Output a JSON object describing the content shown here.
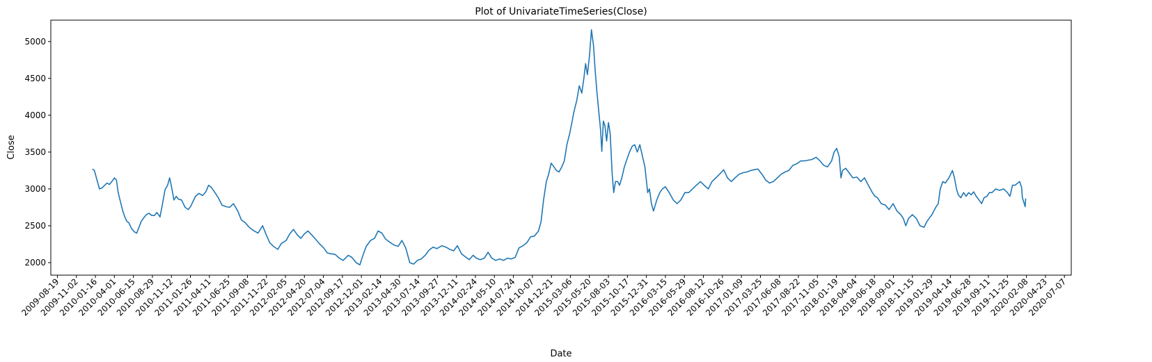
{
  "chart_data": {
    "type": "line",
    "title": "Plot of UnivariateTimeSeries(Close)",
    "xlabel": "Date",
    "ylabel": "Close",
    "ylim": [
      1830,
      5290
    ],
    "xlim": [
      "2009-07-24",
      "2020-08-03"
    ],
    "y_ticks": [
      2000,
      2500,
      3000,
      3500,
      4000,
      4500,
      5000
    ],
    "x_ticks": [
      "2009-08-19",
      "2009-11-02",
      "2010-01-16",
      "2010-04-01",
      "2010-06-15",
      "2010-08-29",
      "2010-11-12",
      "2011-01-26",
      "2011-04-11",
      "2011-06-25",
      "2011-09-08",
      "2011-11-22",
      "2012-02-05",
      "2012-04-20",
      "2012-07-04",
      "2012-09-17",
      "2012-12-01",
      "2013-02-14",
      "2013-04-30",
      "2013-07-14",
      "2013-09-27",
      "2013-12-11",
      "2014-02-24",
      "2014-05-10",
      "2014-07-24",
      "2014-10-07",
      "2014-12-21",
      "2015-03-06",
      "2015-05-20",
      "2015-08-03",
      "2015-10-17",
      "2015-12-31",
      "2016-03-15",
      "2016-05-29",
      "2016-08-12",
      "2016-10-26",
      "2017-01-09",
      "2017-03-25",
      "2017-06-08",
      "2017-08-22",
      "2017-11-05",
      "2018-01-19",
      "2018-04-04",
      "2018-06-18",
      "2018-09-01",
      "2018-11-15",
      "2019-01-29",
      "2019-04-14",
      "2019-06-28",
      "2019-09-11",
      "2019-11-25",
      "2020-02-08",
      "2020-04-23",
      "2020-07-07"
    ],
    "grid": false,
    "legend": "none",
    "line_color": "#1f77b4",
    "series": [
      {
        "x": [
          "2010-01-04",
          "2010-01-12",
          "2010-01-20",
          "2010-02-01",
          "2010-02-10",
          "2010-02-22",
          "2010-03-03",
          "2010-03-12",
          "2010-03-22",
          "2010-04-01",
          "2010-04-09",
          "2010-04-16",
          "2010-04-23",
          "2010-05-04",
          "2010-05-12",
          "2010-05-20",
          "2010-05-28",
          "2010-06-08",
          "2010-06-18",
          "2010-06-28",
          "2010-07-07",
          "2010-07-16",
          "2010-07-26",
          "2010-08-05",
          "2010-08-16",
          "2010-08-26",
          "2010-09-06",
          "2010-09-16",
          "2010-09-28",
          "2010-10-08",
          "2010-10-18",
          "2010-10-28",
          "2010-11-05",
          "2010-11-12",
          "2010-11-22",
          "2010-12-01",
          "2010-12-10",
          "2010-12-22",
          "2011-01-05",
          "2011-01-18",
          "2011-01-28",
          "2011-02-15",
          "2011-03-01",
          "2011-03-15",
          "2011-03-28",
          "2011-04-08",
          "2011-04-19",
          "2011-05-03",
          "2011-05-16",
          "2011-05-31",
          "2011-06-15",
          "2011-06-30",
          "2011-07-15",
          "2011-08-01",
          "2011-08-15",
          "2011-08-31",
          "2011-09-15",
          "2011-09-30",
          "2011-10-20",
          "2011-11-07",
          "2011-11-21",
          "2011-12-05",
          "2011-12-20",
          "2012-01-06",
          "2012-01-20",
          "2012-02-08",
          "2012-02-22",
          "2012-03-08",
          "2012-03-22",
          "2012-04-06",
          "2012-04-20",
          "2012-05-04",
          "2012-05-18",
          "2012-06-05",
          "2012-06-20",
          "2012-07-05",
          "2012-07-20",
          "2012-08-03",
          "2012-08-20",
          "2012-09-05",
          "2012-09-20",
          "2012-10-10",
          "2012-10-25",
          "2012-11-10",
          "2012-11-25",
          "2012-12-05",
          "2012-12-20",
          "2013-01-06",
          "2013-01-22",
          "2013-02-05",
          "2013-02-20",
          "2013-03-06",
          "2013-03-22",
          "2013-04-08",
          "2013-04-25",
          "2013-05-10",
          "2013-05-25",
          "2013-06-10",
          "2013-06-25",
          "2013-07-10",
          "2013-07-25",
          "2013-08-10",
          "2013-08-25",
          "2013-09-10",
          "2013-09-25",
          "2013-10-15",
          "2013-10-31",
          "2013-11-15",
          "2013-11-30",
          "2013-12-15",
          "2013-12-31",
          "2014-01-15",
          "2014-01-31",
          "2014-02-15",
          "2014-02-28",
          "2014-03-15",
          "2014-03-31",
          "2014-04-15",
          "2014-04-30",
          "2014-05-15",
          "2014-05-31",
          "2014-06-15",
          "2014-06-30",
          "2014-07-15",
          "2014-07-31",
          "2014-08-15",
          "2014-08-31",
          "2014-09-15",
          "2014-09-30",
          "2014-10-15",
          "2014-10-31",
          "2014-11-10",
          "2014-11-20",
          "2014-12-01",
          "2014-12-10",
          "2014-12-20",
          "2014-12-31",
          "2015-01-10",
          "2015-01-20",
          "2015-01-31",
          "2015-02-10",
          "2015-02-20",
          "2015-03-03",
          "2015-03-12",
          "2015-03-20",
          "2015-03-31",
          "2015-04-10",
          "2015-04-20",
          "2015-04-28",
          "2015-05-05",
          "2015-05-12",
          "2015-05-20",
          "2015-05-28",
          "2015-06-05",
          "2015-06-12",
          "2015-06-19",
          "2015-06-26",
          "2015-07-03",
          "2015-07-08",
          "2015-07-14",
          "2015-07-20",
          "2015-07-27",
          "2015-08-03",
          "2015-08-10",
          "2015-08-18",
          "2015-08-24",
          "2015-08-31",
          "2015-09-08",
          "2015-09-16",
          "2015-09-25",
          "2015-10-05",
          "2015-10-15",
          "2015-10-25",
          "2015-11-05",
          "2015-11-15",
          "2015-11-25",
          "2015-12-05",
          "2015-12-15",
          "2015-12-25",
          "2016-01-05",
          "2016-01-12",
          "2016-01-20",
          "2016-01-28",
          "2016-02-10",
          "2016-02-22",
          "2016-03-03",
          "2016-03-15",
          "2016-03-30",
          "2016-04-15",
          "2016-04-30",
          "2016-05-15",
          "2016-05-31",
          "2016-06-15",
          "2016-06-30",
          "2016-07-15",
          "2016-07-31",
          "2016-08-15",
          "2016-08-31",
          "2016-09-15",
          "2016-09-30",
          "2016-10-15",
          "2016-10-31",
          "2016-11-15",
          "2016-11-30",
          "2016-12-15",
          "2016-12-31",
          "2017-01-15",
          "2017-01-31",
          "2017-02-15",
          "2017-02-28",
          "2017-03-15",
          "2017-03-31",
          "2017-04-15",
          "2017-04-30",
          "2017-05-15",
          "2017-05-31",
          "2017-06-15",
          "2017-06-30",
          "2017-07-15",
          "2017-07-31",
          "2017-08-15",
          "2017-08-31",
          "2017-09-15",
          "2017-09-30",
          "2017-10-15",
          "2017-10-31",
          "2017-11-15",
          "2017-11-30",
          "2017-12-15",
          "2017-12-31",
          "2018-01-10",
          "2018-01-20",
          "2018-01-30",
          "2018-02-06",
          "2018-02-12",
          "2018-02-25",
          "2018-03-10",
          "2018-03-25",
          "2018-04-10",
          "2018-04-25",
          "2018-05-10",
          "2018-05-25",
          "2018-06-10",
          "2018-06-20",
          "2018-06-30",
          "2018-07-15",
          "2018-07-31",
          "2018-08-15",
          "2018-08-31",
          "2018-09-15",
          "2018-09-30",
          "2018-10-10",
          "2018-10-20",
          "2018-10-31",
          "2018-11-15",
          "2018-11-30",
          "2018-12-15",
          "2018-12-31",
          "2019-01-10",
          "2019-01-20",
          "2019-01-31",
          "2019-02-15",
          "2019-02-25",
          "2019-03-05",
          "2019-03-15",
          "2019-03-25",
          "2019-04-08",
          "2019-04-15",
          "2019-04-22",
          "2019-04-30",
          "2019-05-08",
          "2019-05-15",
          "2019-05-25",
          "2019-06-05",
          "2019-06-15",
          "2019-06-25",
          "2019-07-05",
          "2019-07-15",
          "2019-07-25",
          "2019-08-05",
          "2019-08-15",
          "2019-08-25",
          "2019-09-05",
          "2019-09-15",
          "2019-09-25",
          "2019-10-10",
          "2019-10-25",
          "2019-11-10",
          "2019-11-25",
          "2019-12-05",
          "2019-12-15",
          "2019-12-25",
          "2020-01-05",
          "2020-01-12",
          "2020-01-20",
          "2020-01-23",
          "2020-02-03",
          "2020-02-05"
        ],
        "y": [
          3270,
          3250,
          3150,
          3000,
          3010,
          3050,
          3080,
          3060,
          3100,
          3150,
          3120,
          2950,
          2850,
          2700,
          2620,
          2560,
          2540,
          2460,
          2420,
          2400,
          2480,
          2560,
          2610,
          2650,
          2670,
          2640,
          2640,
          2680,
          2620,
          2800,
          2990,
          3050,
          3150,
          3040,
          2850,
          2900,
          2860,
          2850,
          2750,
          2720,
          2770,
          2900,
          2940,
          2910,
          2960,
          3050,
          3020,
          2950,
          2880,
          2780,
          2760,
          2750,
          2800,
          2700,
          2580,
          2540,
          2480,
          2440,
          2400,
          2500,
          2380,
          2270,
          2220,
          2180,
          2260,
          2300,
          2390,
          2450,
          2380,
          2330,
          2390,
          2430,
          2380,
          2310,
          2250,
          2200,
          2130,
          2120,
          2110,
          2060,
          2030,
          2100,
          2070,
          2000,
          1970,
          2080,
          2220,
          2300,
          2330,
          2430,
          2400,
          2320,
          2280,
          2240,
          2220,
          2300,
          2200,
          2000,
          1980,
          2030,
          2050,
          2100,
          2170,
          2210,
          2190,
          2230,
          2210,
          2180,
          2160,
          2230,
          2120,
          2080,
          2040,
          2100,
          2060,
          2040,
          2060,
          2140,
          2060,
          2030,
          2050,
          2030,
          2060,
          2050,
          2070,
          2200,
          2230,
          2270,
          2350,
          2360,
          2430,
          2550,
          2850,
          3100,
          3200,
          3350,
          3300,
          3250,
          3230,
          3300,
          3380,
          3600,
          3750,
          3900,
          4050,
          4200,
          4400,
          4300,
          4500,
          4700,
          4550,
          4800,
          5160,
          4950,
          4600,
          4300,
          4050,
          3800,
          3510,
          3920,
          3860,
          3650,
          3900,
          3750,
          3200,
          2950,
          3100,
          3100,
          3050,
          3150,
          3300,
          3400,
          3500,
          3580,
          3600,
          3500,
          3600,
          3450,
          3300,
          2950,
          3000,
          2800,
          2700,
          2850,
          2950,
          3000,
          3030,
          2950,
          2850,
          2800,
          2850,
          2950,
          2950,
          3000,
          3050,
          3100,
          3050,
          3000,
          3100,
          3150,
          3200,
          3260,
          3150,
          3100,
          3150,
          3200,
          3220,
          3230,
          3250,
          3260,
          3270,
          3200,
          3120,
          3080,
          3100,
          3150,
          3200,
          3230,
          3250,
          3320,
          3340,
          3380,
          3380,
          3390,
          3400,
          3430,
          3380,
          3320,
          3300,
          3380,
          3500,
          3550,
          3440,
          3150,
          3250,
          3280,
          3220,
          3150,
          3160,
          3100,
          3150,
          3050,
          2950,
          2900,
          2880,
          2800,
          2780,
          2720,
          2800,
          2700,
          2650,
          2600,
          2500,
          2600,
          2650,
          2600,
          2500,
          2480,
          2550,
          2600,
          2650,
          2750,
          2800,
          3000,
          3100,
          3080,
          3150,
          3200,
          3250,
          3150,
          3000,
          2920,
          2880,
          2950,
          2900,
          2950,
          2920,
          2960,
          2900,
          2850,
          2800,
          2880,
          2900,
          2950,
          2950,
          3000,
          2980,
          3000,
          2950,
          2900,
          3050,
          3050,
          3080,
          3100,
          3020,
          2880,
          2760,
          2870
        ]
      }
    ]
  }
}
